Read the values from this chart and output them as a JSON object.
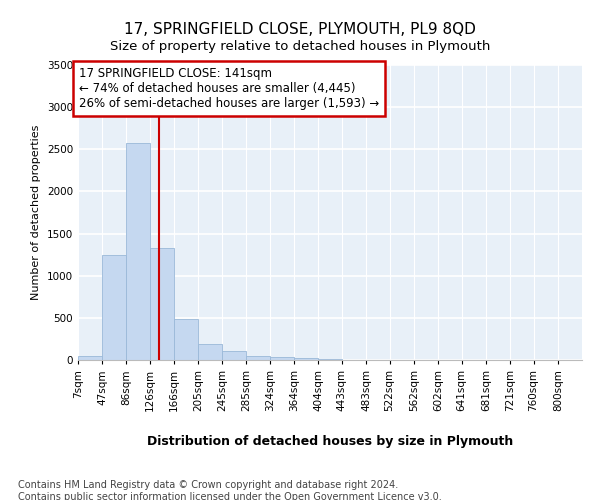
{
  "title": "17, SPRINGFIELD CLOSE, PLYMOUTH, PL9 8QD",
  "subtitle": "Size of property relative to detached houses in Plymouth",
  "xlabel": "Distribution of detached houses by size in Plymouth",
  "ylabel": "Number of detached properties",
  "bar_color": "#c5d8f0",
  "bar_edge_color": "#9ab8d8",
  "background_color": "#e8f0f8",
  "grid_color": "#ffffff",
  "annotation_text": "17 SPRINGFIELD CLOSE: 141sqm\n← 74% of detached houses are smaller (4,445)\n26% of semi-detached houses are larger (1,593) →",
  "vline_x": 141,
  "vline_color": "#cc0000",
  "annotation_box_color": "#cc0000",
  "bins": [
    7,
    47,
    86,
    126,
    166,
    205,
    245,
    285,
    324,
    364,
    404,
    443,
    483,
    522,
    562,
    602,
    641,
    681,
    721,
    760,
    800
  ],
  "values": [
    50,
    1250,
    2570,
    1330,
    490,
    195,
    110,
    50,
    30,
    20,
    10,
    5,
    3,
    0,
    0,
    0,
    0,
    0,
    0,
    0,
    0
  ],
  "ylim": [
    0,
    3500
  ],
  "yticks": [
    0,
    500,
    1000,
    1500,
    2000,
    2500,
    3000,
    3500
  ],
  "footer": "Contains HM Land Registry data © Crown copyright and database right 2024.\nContains public sector information licensed under the Open Government Licence v3.0.",
  "title_fontsize": 11,
  "subtitle_fontsize": 9.5,
  "xlabel_fontsize": 9,
  "ylabel_fontsize": 8,
  "tick_fontsize": 7.5,
  "footer_fontsize": 7,
  "ann_fontsize": 8.5
}
